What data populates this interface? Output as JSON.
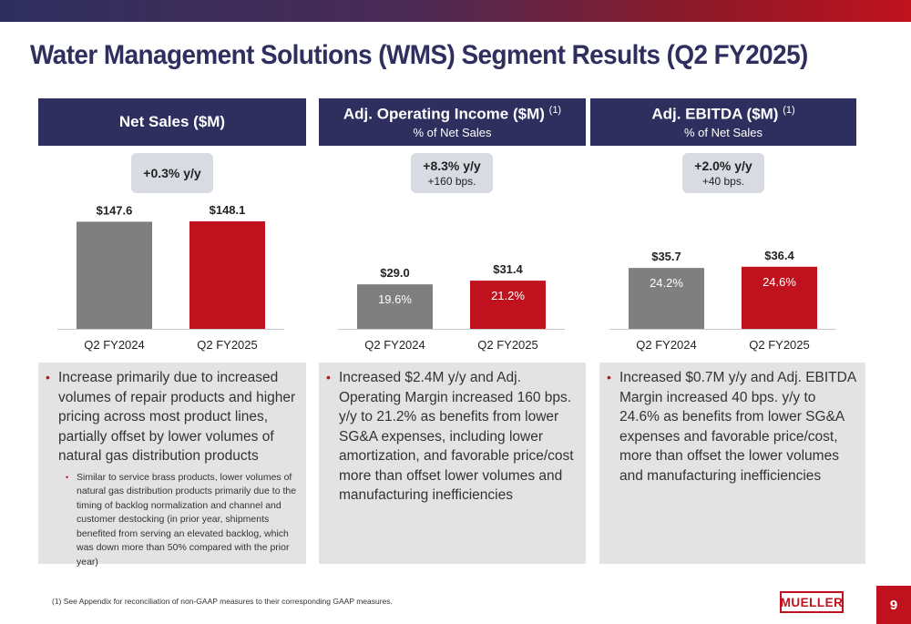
{
  "title": "Water Management Solutions (WMS) Segment Results (Q2 FY2025)",
  "colors": {
    "navy": "#2e2f5e",
    "red": "#c0121e",
    "gray_bar": "#7f7f7f",
    "badge_bg": "#d9dbe3",
    "box_bg": "#e3e3e3"
  },
  "panels": [
    {
      "header": "Net Sales ($M)",
      "header_sup": "",
      "subheader": "",
      "badge_line1": "+0.3% y/y",
      "badge_line2": "",
      "bullets": [
        {
          "text": "Increase primarily due to increased volumes of repair products and higher pricing across most product lines, partially offset by lower volumes of natural gas distribution products",
          "sub": "Similar to service brass products, lower volumes of natural gas distribution products primarily due to the timing of backlog normalization and channel and customer destocking (in prior year, shipments benefited from serving an elevated backlog, which was down more than 50% compared with the prior year)"
        }
      ]
    },
    {
      "header": "Adj. Operating Income ($M)",
      "header_sup": "(1)",
      "subheader": "% of Net Sales",
      "badge_line1": "+8.3% y/y",
      "badge_line2": "+160 bps.",
      "bullets": [
        {
          "text": "Increased $2.4M y/y and Adj. Operating Margin increased 160 bps. y/y to 21.2% as benefits from lower SG&A expenses, including lower amortization, and favorable price/cost more than offset lower volumes and manufacturing inefficiencies",
          "sub": ""
        }
      ]
    },
    {
      "header": "Adj. EBITDA ($M)",
      "header_sup": "(1)",
      "subheader": "% of Net Sales",
      "badge_line1": "+2.0% y/y",
      "badge_line2": "+40 bps.",
      "bullets": [
        {
          "text": "Increased $0.7M y/y and Adj. EBITDA Margin increased 40 bps. y/y to 24.6% as benefits from lower SG&A expenses and favorable price/cost, more than offset the lower volumes and manufacturing inefficiencies",
          "sub": ""
        }
      ]
    }
  ],
  "chart_data": [
    {
      "type": "bar",
      "categories": [
        "Q2 FY2024",
        "Q2 FY2025"
      ],
      "values": [
        147.6,
        148.1
      ],
      "value_labels": [
        "$147.6",
        "$148.1"
      ],
      "inner_labels": [
        "",
        ""
      ],
      "title": "Net Sales ($M)",
      "xlabel": "",
      "ylabel": "",
      "ylim": [
        0,
        148.1
      ],
      "grid": false
    },
    {
      "type": "bar",
      "categories": [
        "Q2 FY2024",
        "Q2 FY2025"
      ],
      "values": [
        29.0,
        31.4
      ],
      "value_labels": [
        "$29.0",
        "$31.4"
      ],
      "inner_labels": [
        "19.6%",
        "21.2%"
      ],
      "title": "Adj. Operating Income ($M)",
      "xlabel": "",
      "ylabel": "",
      "ylim": [
        0,
        70
      ],
      "grid": false
    },
    {
      "type": "bar",
      "categories": [
        "Q2 FY2024",
        "Q2 FY2025"
      ],
      "values": [
        35.7,
        36.4
      ],
      "value_labels": [
        "$35.7",
        "$36.4"
      ],
      "inner_labels": [
        "24.2%",
        "24.6%"
      ],
      "title": "Adj. EBITDA ($M)",
      "xlabel": "",
      "ylabel": "",
      "ylim": [
        0,
        63
      ],
      "grid": false
    }
  ],
  "footnote": "(1)  See Appendix for reconciliation of non-GAAP measures to their corresponding GAAP measures.",
  "logo_text": "MUELLER",
  "page_number": "9"
}
